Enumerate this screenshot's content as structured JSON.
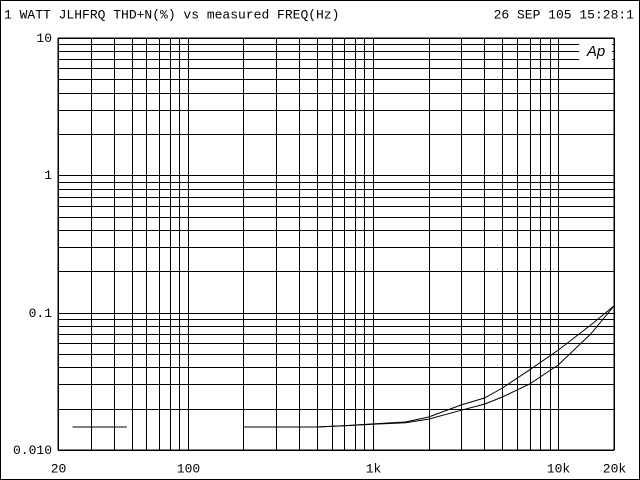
{
  "chart_data": {
    "type": "line",
    "title": "1 WATT JLHFRQ THD+N(%) vs measured FREQ(Hz)",
    "timestamp": "26 SEP 105 15:28:1",
    "logo": "Ap",
    "log_x": true,
    "log_y": true,
    "xlim": [
      20,
      20000
    ],
    "ylim": [
      0.01,
      10
    ],
    "xticks": [
      20,
      100,
      {
        "value": 1000,
        "label": "1k"
      },
      {
        "value": 10000,
        "label": "10k"
      },
      {
        "value": 20000,
        "label": "20k"
      }
    ],
    "yticks": [
      {
        "value": 0.01,
        "label": "0.010"
      },
      0.1,
      1,
      10
    ],
    "xgrid": [
      30,
      40,
      50,
      60,
      70,
      80,
      90,
      200,
      300,
      400,
      500,
      600,
      700,
      800,
      900,
      2000,
      3000,
      4000,
      5000,
      6000,
      7000,
      8000,
      9000
    ],
    "ygrid": [
      0.02,
      0.03,
      0.04,
      0.05,
      0.06,
      0.07,
      0.08,
      0.09,
      0.2,
      0.3,
      0.4,
      0.5,
      0.6,
      0.7,
      0.8,
      0.9,
      2,
      3,
      4,
      5,
      6,
      7,
      8,
      9
    ],
    "color": "#000000",
    "x": [
      24,
      30,
      40,
      47,
      100,
      200,
      300,
      500,
      700,
      1000,
      1500,
      2000,
      3000,
      4000,
      5000,
      7000,
      10000,
      15000,
      20000
    ],
    "series": [
      {
        "color": "#000000",
        "values": [
          0.0147,
          0.0147,
          0.0147,
          0.0147,
          null,
          0.0147,
          0.0147,
          0.0147,
          0.015,
          0.0155,
          0.016,
          0.0174,
          0.0213,
          0.0239,
          0.0283,
          0.0383,
          0.0534,
          0.0813,
          0.112
        ]
      },
      {
        "color": "#000000",
        "values": [
          0.0147,
          0.0147,
          0.0147,
          0.0147,
          null,
          0.0147,
          0.0147,
          0.0147,
          0.015,
          0.0154,
          0.0158,
          0.0168,
          0.0195,
          0.0216,
          0.0243,
          0.0302,
          0.0416,
          0.07,
          0.112
        ]
      }
    ]
  }
}
